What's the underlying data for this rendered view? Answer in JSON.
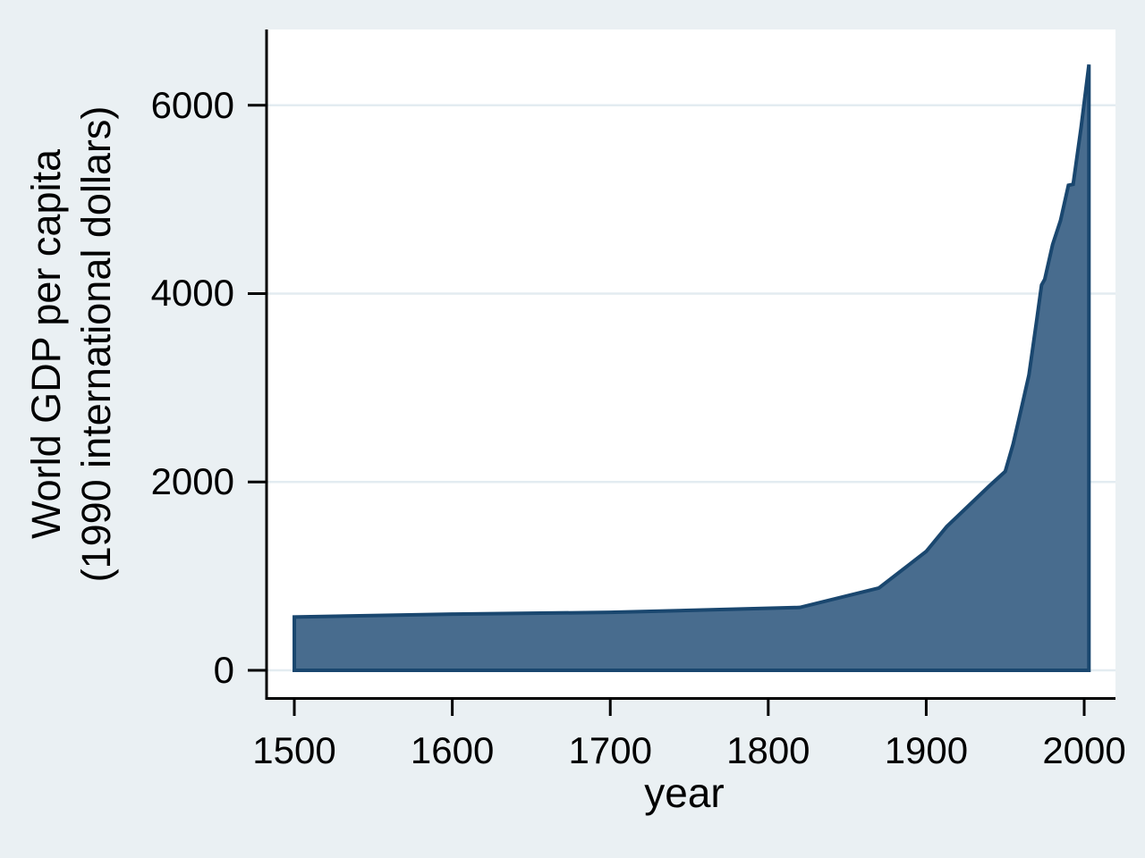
{
  "chart_data": {
    "type": "area",
    "title": "",
    "xlabel": "year",
    "ylabel_line1": "World GDP per capita",
    "ylabel_line2": "(1990 international dollars)",
    "legend": "none",
    "grid": "horizontal",
    "xlim": [
      1483,
      2019.8
    ],
    "ylim": [
      -304,
      6804
    ],
    "x_ticks": [
      1500,
      1600,
      1700,
      1800,
      1900,
      2000
    ],
    "y_ticks": [
      0,
      2000,
      4000,
      6000
    ],
    "baseline_value": 0,
    "series": [
      {
        "name": "World GDP per capita (1990 international dollars)",
        "points": [
          [
            1500,
            566
          ],
          [
            1600,
            596
          ],
          [
            1700,
            615
          ],
          [
            1820,
            667
          ],
          [
            1870,
            873
          ],
          [
            1900,
            1262
          ],
          [
            1913,
            1526
          ],
          [
            1940,
            1958
          ],
          [
            1950,
            2111
          ],
          [
            1955,
            2401
          ],
          [
            1960,
            2764
          ],
          [
            1965,
            3134
          ],
          [
            1970,
            3725
          ],
          [
            1973,
            4091
          ],
          [
            1975,
            4150
          ],
          [
            1980,
            4520
          ],
          [
            1985,
            4775
          ],
          [
            1990,
            5150
          ],
          [
            1993,
            5160
          ],
          [
            1998,
            5760
          ],
          [
            2003,
            6432
          ]
        ]
      }
    ],
    "colors": {
      "background": "#EAF0F3",
      "plot_background": "#FFFFFF",
      "gridline": "#E3ECF1",
      "area_fill": "#486C8E",
      "area_outline": "#1A476F",
      "axis": "#000000",
      "text": "#000000"
    }
  }
}
